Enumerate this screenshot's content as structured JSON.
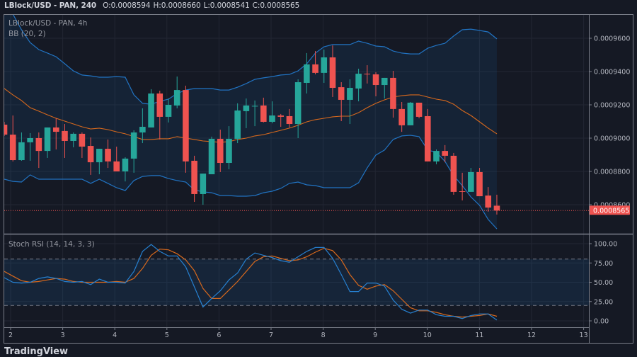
{
  "header": {
    "symbol": "LBlock/USD - PAN, 240",
    "ohlc": [
      {
        "label": "O:",
        "value": "0.0008594"
      },
      {
        "label": "H:",
        "value": "0.0008660"
      },
      {
        "label": "L:",
        "value": "0.0008541"
      },
      {
        "label": "C:",
        "value": "0.0008565"
      }
    ]
  },
  "price_pane": {
    "title": "LBlock/USD - PAN, 4h",
    "indicator": "BB (20, 2)"
  },
  "stoch_pane": {
    "indicator": "Stoch RSI (14, 14, 3, 3)"
  },
  "logo": "TradingView",
  "colors": {
    "background": "#151924",
    "grid": "#222633",
    "border": "#7b7f8a",
    "up": "#26a69a",
    "down": "#ef5350",
    "bb_band": "#2173c2",
    "bb_basis": "#d8691d",
    "stoch_k": "#2680d0",
    "stoch_d": "#d8691d",
    "last_price": "#ef5350"
  },
  "chart_data": [
    {
      "type": "candlestick",
      "pane": "price",
      "ylim": [
        0.000842,
        0.000975
      ],
      "grid": true,
      "yticks": [
        "0.0009600",
        "0.0009400",
        "0.0009200",
        "0.0009000",
        "0.0008800",
        "0.0008600"
      ],
      "ytick_values": [
        0.00096,
        0.00094,
        0.00092,
        0.0009,
        0.00088,
        0.00086
      ],
      "last_price_label": "0.0008565",
      "last_price": 0.0008565,
      "candles_ohlc": [
        [
          0.0009081,
          0.0009098,
          0.0009013,
          0.0009021
        ],
        [
          0.0009021,
          0.0009136,
          0.000886,
          0.0008868
        ],
        [
          0.0008868,
          0.0009034,
          0.0008864,
          0.0008975
        ],
        [
          0.0008975,
          0.000903,
          0.0008864,
          0.0009
        ],
        [
          0.0009,
          0.0009034,
          0.0008821,
          0.0008923
        ],
        [
          0.0008923,
          0.0009064,
          0.0008881,
          0.0009064
        ],
        [
          0.0009064,
          0.0009119,
          0.0008932,
          0.0009038
        ],
        [
          0.0009043,
          0.0009085,
          0.0008881,
          0.0008983
        ],
        [
          0.0008983,
          0.0009034,
          0.0008945,
          0.0009026
        ],
        [
          0.0009026,
          0.0009034,
          0.0008881,
          0.0008949
        ],
        [
          0.0008953,
          0.0009004,
          0.0008779,
          0.0008855
        ],
        [
          0.0008855,
          0.0008936,
          0.0008783,
          0.0008936
        ],
        [
          0.0008936,
          0.0008992,
          0.0008821,
          0.000886
        ],
        [
          0.000886,
          0.0008949,
          0.00088,
          0.00088
        ],
        [
          0.00088,
          0.0008885,
          0.000874,
          0.0008877
        ],
        [
          0.0008877,
          0.0009047,
          0.0008792,
          0.0009034
        ],
        [
          0.0009034,
          0.0009179,
          0.000897,
          0.0009068
        ],
        [
          0.0009064,
          0.0009294,
          0.0009064,
          0.0009268
        ],
        [
          0.0009268,
          0.0009285,
          0.0008992,
          0.0009128
        ],
        [
          0.0009128,
          0.0009238,
          0.0009094,
          0.00092
        ],
        [
          0.0009196,
          0.000937,
          0.0009179,
          0.0009289
        ],
        [
          0.0009289,
          0.0009315,
          0.0008792,
          0.000886
        ],
        [
          0.0008864,
          0.0008894,
          0.0008617,
          0.0008664
        ],
        [
          0.0008664,
          0.0008787,
          0.00086,
          0.0008787
        ],
        [
          0.0008783,
          0.0009009,
          0.0008783,
          0.0008996
        ],
        [
          0.0008996,
          0.0009051,
          0.0008796,
          0.0008851
        ],
        [
          0.0008851,
          0.0009072,
          0.0008813,
          0.0008996
        ],
        [
          0.0008996,
          0.0009209,
          0.000897,
          0.0009166
        ],
        [
          0.0009162,
          0.0009238,
          0.000906,
          0.0009196
        ],
        [
          0.000919,
          0.0009226,
          0.0009072,
          0.0009194
        ],
        [
          0.0009196,
          0.0009243,
          0.0009094,
          0.0009098
        ],
        [
          0.0009098,
          0.0009221,
          0.0009089,
          0.0009136
        ],
        [
          0.0009136,
          0.0009145,
          0.0009068,
          0.0009128
        ],
        [
          0.0009132,
          0.0009175,
          0.0009064,
          0.0009085
        ],
        [
          0.0009085,
          0.0009353,
          0.0009,
          0.0009336
        ],
        [
          0.0009332,
          0.0009511,
          0.0009268,
          0.0009443
        ],
        [
          0.0009443,
          0.0009523,
          0.0009383,
          0.0009392
        ],
        [
          0.0009392,
          0.0009532,
          0.0009332,
          0.0009485
        ],
        [
          0.0009485,
          0.0009557,
          0.0009247,
          0.0009302
        ],
        [
          0.0009306,
          0.0009336,
          0.0009102,
          0.000923
        ],
        [
          0.000923,
          0.0009353,
          0.0009085,
          0.0009302
        ],
        [
          0.0009298,
          0.0009417,
          0.0009221,
          0.0009387
        ],
        [
          0.0009387,
          0.0009438,
          0.0009328,
          0.0009383
        ],
        [
          0.0009383,
          0.0009396,
          0.0009251,
          0.0009319
        ],
        [
          0.0009319,
          0.0009362,
          0.0009238,
          0.0009362
        ],
        [
          0.0009362,
          0.0009404,
          0.0009123,
          0.0009175
        ],
        [
          0.0009175,
          0.0009217,
          0.0009038,
          0.0009077
        ],
        [
          0.0009077,
          0.0009217,
          0.0009077,
          0.0009213
        ],
        [
          0.0009213,
          0.0009213,
          0.0009119,
          0.0009128
        ],
        [
          0.0009132,
          0.0009175,
          0.000886,
          0.000886
        ],
        [
          0.000886,
          0.0008932,
          0.0008843,
          0.0008923
        ],
        [
          0.0008923,
          0.0008958,
          0.0008855,
          0.0008894
        ],
        [
          0.0008894,
          0.0008911,
          0.000866,
          0.0008677
        ],
        [
          0.0008681,
          0.0008792,
          0.0008626,
          0.0008677
        ],
        [
          0.0008677,
          0.0008821,
          0.0008677,
          0.0008796
        ],
        [
          0.0008796,
          0.0008821,
          0.0008651,
          0.0008651
        ],
        [
          0.0008655,
          0.0008706,
          0.0008558,
          0.0008583
        ],
        [
          0.0008594,
          0.000866,
          0.0008541,
          0.0008565
        ]
      ],
      "bollinger": {
        "upper": [
          0.0009787,
          0.0009745,
          0.0009651,
          0.0009574,
          0.0009532,
          0.0009511,
          0.0009489,
          0.0009447,
          0.0009404,
          0.0009379,
          0.0009374,
          0.0009366,
          0.0009366,
          0.000937,
          0.0009366,
          0.000926,
          0.0009209,
          0.0009204,
          0.0009221,
          0.0009234,
          0.0009268,
          0.0009289,
          0.0009298,
          0.0009298,
          0.0009298,
          0.0009289,
          0.0009289,
          0.0009306,
          0.0009328,
          0.0009353,
          0.0009362,
          0.000937,
          0.0009379,
          0.0009383,
          0.0009404,
          0.0009447,
          0.0009511,
          0.0009549,
          0.0009562,
          0.0009562,
          0.0009562,
          0.0009583,
          0.000957,
          0.0009553,
          0.0009549,
          0.0009523,
          0.0009511,
          0.0009506,
          0.0009506,
          0.000954,
          0.0009557,
          0.000957,
          0.0009613,
          0.0009651,
          0.0009655,
          0.0009647,
          0.0009638,
          0.0009596
        ],
        "basis": [
          0.0009298,
          0.000926,
          0.0009226,
          0.0009183,
          0.0009162,
          0.000914,
          0.0009119,
          0.0009102,
          0.0009085,
          0.0009068,
          0.0009055,
          0.000906,
          0.0009051,
          0.0009038,
          0.0009026,
          0.0009009,
          0.0008992,
          0.0008992,
          0.0008996,
          0.0008996,
          0.0009009,
          0.0009,
          0.0008992,
          0.0008983,
          0.0008979,
          0.0008975,
          0.0008979,
          0.0008992,
          0.0009,
          0.0009013,
          0.0009021,
          0.0009034,
          0.0009047,
          0.000906,
          0.0009077,
          0.0009098,
          0.0009111,
          0.0009119,
          0.0009128,
          0.0009132,
          0.0009132,
          0.0009153,
          0.0009183,
          0.0009209,
          0.000923,
          0.0009247,
          0.0009255,
          0.000926,
          0.000926,
          0.0009247,
          0.0009234,
          0.0009226,
          0.0009204,
          0.0009166,
          0.0009136,
          0.0009098,
          0.000906,
          0.0009026
        ],
        "lower": [
          0.0008753,
          0.000874,
          0.0008736,
          0.0008779,
          0.0008753,
          0.0008753,
          0.0008753,
          0.0008753,
          0.0008753,
          0.0008753,
          0.0008728,
          0.0008753,
          0.0008728,
          0.0008702,
          0.0008685,
          0.0008745,
          0.000877,
          0.0008775,
          0.0008775,
          0.0008757,
          0.0008745,
          0.0008736,
          0.0008689,
          0.0008677,
          0.0008672,
          0.0008655,
          0.0008655,
          0.0008651,
          0.0008651,
          0.0008655,
          0.0008672,
          0.0008681,
          0.0008698,
          0.0008728,
          0.0008736,
          0.0008719,
          0.0008715,
          0.0008702,
          0.0008702,
          0.0008702,
          0.0008702,
          0.0008732,
          0.0008821,
          0.0008898,
          0.0008928,
          0.0008992,
          0.0009013,
          0.0009017,
          0.0009009,
          0.0008928,
          0.0008915,
          0.000886,
          0.0008775,
          0.0008715,
          0.0008647,
          0.0008596,
          0.0008511,
          0.0008455
        ]
      }
    },
    {
      "type": "line",
      "pane": "stoch_rsi",
      "ylim": [
        0,
        100
      ],
      "grid": true,
      "yticks": [
        "100.00",
        "75.00",
        "50.00",
        "25.00",
        "0.00"
      ],
      "ytick_values": [
        100,
        75,
        50,
        25,
        0
      ],
      "band": [
        20,
        80
      ],
      "series": [
        {
          "key": "k",
          "values": [
            56,
            50,
            49,
            50,
            55,
            57,
            55,
            51,
            50,
            51,
            47,
            54,
            50,
            50,
            49,
            64,
            90,
            99,
            90,
            84,
            84,
            70,
            44,
            18,
            29,
            39,
            53,
            62,
            80,
            88,
            85,
            82,
            78,
            76,
            83,
            90,
            95,
            95,
            81,
            60,
            38,
            38,
            49,
            49,
            45,
            27,
            15,
            10,
            14,
            14,
            8,
            6,
            6,
            3,
            7,
            9,
            9,
            1
          ]
        },
        {
          "key": "d",
          "values": [
            64,
            58,
            52,
            50,
            51,
            53,
            55,
            54,
            51,
            50,
            50,
            50,
            50,
            51,
            50,
            55,
            68,
            85,
            93,
            92,
            87,
            79,
            65,
            42,
            29,
            29,
            40,
            51,
            64,
            77,
            83,
            84,
            81,
            78,
            79,
            83,
            89,
            94,
            91,
            79,
            60,
            46,
            41,
            45,
            47,
            39,
            28,
            17,
            13,
            13,
            11,
            8,
            6,
            5,
            6,
            7,
            9,
            6
          ]
        }
      ]
    }
  ],
  "xaxis": {
    "ticks": [
      "2",
      "3",
      "4",
      "5",
      "6",
      "7",
      "8",
      "9",
      "10",
      "11",
      "12",
      "13"
    ]
  }
}
